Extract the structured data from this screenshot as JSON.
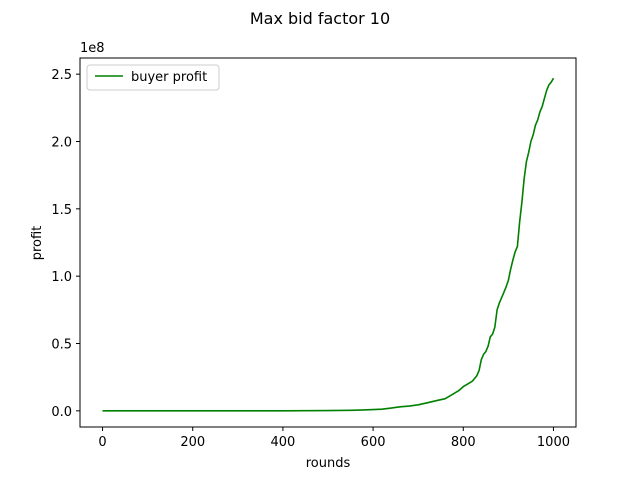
{
  "chart_data": {
    "type": "line",
    "title": "Max bid factor 10",
    "xlabel": "rounds",
    "ylabel": "profit",
    "y_offset_label": "1e8",
    "xlim": [
      -50,
      1050
    ],
    "ylim": [
      -0.12,
      2.62
    ],
    "x_ticks": [
      0,
      200,
      400,
      600,
      800,
      1000
    ],
    "x_tick_labels": [
      "0",
      "200",
      "400",
      "600",
      "800",
      "1000"
    ],
    "y_ticks": [
      0.0,
      0.5,
      1.0,
      1.5,
      2.0,
      2.5
    ],
    "y_tick_labels": [
      "0.0",
      "0.5",
      "1.0",
      "1.5",
      "2.0",
      "2.5"
    ],
    "grid": false,
    "legend": {
      "placement": "top-left",
      "entries": [
        "buyer profit"
      ]
    },
    "series": [
      {
        "name": "buyer profit",
        "color": "#008000",
        "x": [
          0,
          100,
          200,
          300,
          400,
          450,
          500,
          550,
          580,
          600,
          620,
          640,
          660,
          680,
          700,
          720,
          740,
          760,
          780,
          790,
          800,
          810,
          820,
          830,
          835,
          840,
          845,
          850,
          855,
          860,
          865,
          870,
          875,
          880,
          885,
          890,
          895,
          900,
          905,
          910,
          915,
          920,
          925,
          930,
          935,
          940,
          945,
          950,
          955,
          960,
          965,
          970,
          975,
          980,
          985,
          990,
          995,
          1000
        ],
        "values": [
          0,
          0,
          0,
          0,
          0.0005,
          0.001,
          0.002,
          0.004,
          0.007,
          0.009,
          0.012,
          0.02,
          0.03,
          0.035,
          0.045,
          0.06,
          0.075,
          0.09,
          0.13,
          0.15,
          0.18,
          0.2,
          0.22,
          0.26,
          0.3,
          0.38,
          0.42,
          0.44,
          0.48,
          0.55,
          0.57,
          0.62,
          0.75,
          0.8,
          0.84,
          0.88,
          0.92,
          0.97,
          1.05,
          1.12,
          1.18,
          1.22,
          1.4,
          1.55,
          1.72,
          1.85,
          1.92,
          2.0,
          2.05,
          2.12,
          2.16,
          2.22,
          2.26,
          2.32,
          2.38,
          2.42,
          2.44,
          2.47
        ]
      }
    ]
  }
}
